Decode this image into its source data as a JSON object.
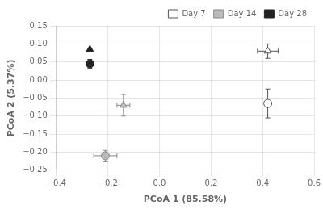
{
  "chart_data": {
    "type": "scatter",
    "xlabel": "PCoA 1 (85.58%)",
    "ylabel": "PCoA 2 (5.37%)",
    "xlim": [
      -0.4,
      0.6
    ],
    "ylim": [
      -0.25,
      0.15
    ],
    "xticks": [
      {
        "value": -0.4,
        "label": "−0.4"
      },
      {
        "value": -0.2,
        "label": "−0.2"
      },
      {
        "value": 0.0,
        "label": "0.0"
      },
      {
        "value": 0.2,
        "label": "0.2"
      },
      {
        "value": 0.4,
        "label": "0.4"
      },
      {
        "value": 0.6,
        "label": "0.6"
      }
    ],
    "yticks": [
      {
        "value": -0.25,
        "label": "−0.25"
      },
      {
        "value": -0.2,
        "label": "−0.20"
      },
      {
        "value": -0.15,
        "label": "−0.15"
      },
      {
        "value": -0.1,
        "label": "−0.10"
      },
      {
        "value": -0.05,
        "label": "−0.05"
      },
      {
        "value": 0.0,
        "label": "0.00"
      },
      {
        "value": 0.05,
        "label": "0.05"
      },
      {
        "value": 0.1,
        "label": "0.10"
      },
      {
        "value": 0.15,
        "label": "0.15"
      }
    ],
    "grid": true,
    "legend": "upper right",
    "series": [
      {
        "name": "Day 28",
        "marker": "triangle",
        "color": "#222222",
        "facecolor": "#222222",
        "x": [
          -0.27
        ],
        "y": [
          0.085
        ],
        "xerr": [
          0.0
        ],
        "yerr": [
          0.0
        ]
      },
      {
        "name": "Day 28",
        "marker": "circle",
        "color": "#222222",
        "facecolor": "#222222",
        "x": [
          -0.27
        ],
        "y": [
          0.045
        ],
        "xerr": [
          0.0
        ],
        "yerr": [
          0.012
        ]
      },
      {
        "name": "Day 14",
        "marker": "triangle",
        "color": "#888888",
        "facecolor": "#bbbbbb",
        "x": [
          -0.14
        ],
        "y": [
          -0.07
        ],
        "xerr": [
          0.025
        ],
        "yerr": [
          0.03
        ]
      },
      {
        "name": "Day 14",
        "marker": "circle",
        "color": "#888888",
        "facecolor": "#bbbbbb",
        "x": [
          -0.21
        ],
        "y": [
          -0.21
        ],
        "xerr": [
          0.045
        ],
        "yerr": [
          0.015
        ]
      },
      {
        "name": "Day 7",
        "marker": "triangle",
        "color": "#555555",
        "facecolor": "#ffffff",
        "x": [
          0.42
        ],
        "y": [
          0.08
        ],
        "xerr": [
          0.04
        ],
        "yerr": [
          0.02
        ]
      },
      {
        "name": "Day 7",
        "marker": "circle",
        "color": "#555555",
        "facecolor": "#ffffff",
        "x": [
          0.42
        ],
        "y": [
          -0.065
        ],
        "xerr": [
          0.0
        ],
        "yerr": [
          0.04
        ]
      }
    ]
  }
}
